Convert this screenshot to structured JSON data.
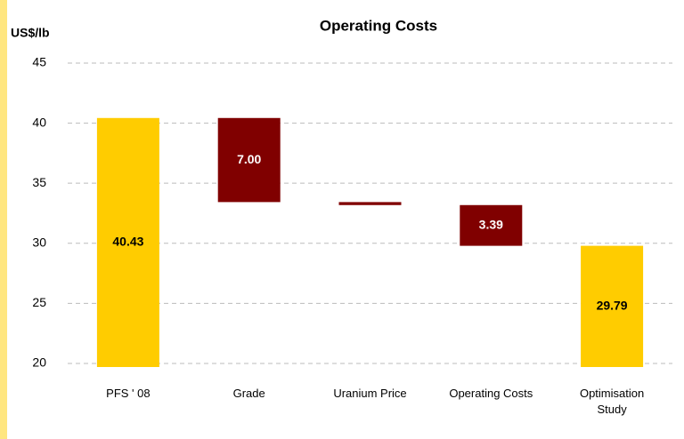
{
  "chart_data": {
    "type": "waterfall",
    "title": "Operating Costs",
    "y_label": "US$/lb",
    "categories": [
      "PFS ' 08",
      "Grade",
      "Uranium Price",
      "Operating Costs",
      "Optimisation Study"
    ],
    "values": [
      40.43,
      7.0,
      0.25,
      3.39,
      29.79
    ],
    "value_labels": [
      "40.43",
      "7.00",
      null,
      "3.39",
      "29.79"
    ],
    "measures": [
      "total",
      "decrease",
      "decrease",
      "decrease",
      "total"
    ],
    "colors": [
      "#ffcc00",
      "#800000",
      "#800000",
      "#800000",
      "#ffcc00"
    ],
    "label_colors": [
      "#000000",
      "#ffffff",
      "#ffffff",
      "#ffffff",
      "#000000"
    ],
    "ylim": [
      19.7,
      45
    ],
    "yticks": [
      20,
      25,
      30,
      35,
      40,
      45
    ],
    "grid": true
  }
}
